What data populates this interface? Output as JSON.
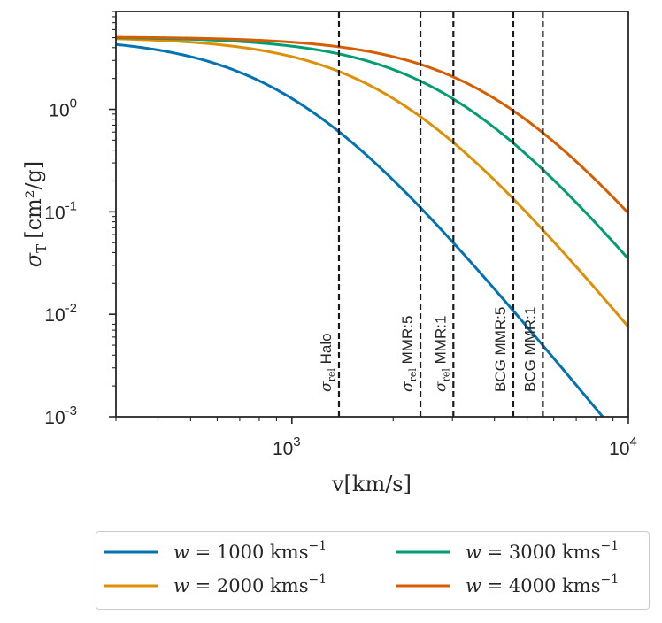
{
  "chart_data": {
    "type": "line",
    "x_scale": "log",
    "y_scale": "log",
    "xlim": [
      300,
      10000
    ],
    "ylim": [
      0.001,
      9
    ],
    "xlabel": "v[km/s]",
    "ylabel": {
      "main": "σ",
      "sub": "T",
      "units": "[cm²/g]"
    },
    "x_ticks": [
      {
        "value": 1000,
        "base": "10",
        "exp": "3"
      },
      {
        "value": 10000,
        "base": "10",
        "exp": "4"
      }
    ],
    "y_ticks": [
      {
        "value": 0.001,
        "base": "10",
        "exp": "-3"
      },
      {
        "value": 0.01,
        "base": "10",
        "exp": "-2"
      },
      {
        "value": 0.1,
        "base": "10",
        "exp": "-1"
      },
      {
        "value": 1,
        "base": "10",
        "exp": "0"
      }
    ],
    "curve_model": {
      "sigma0": 5.1,
      "form": "sigma0 / (1 + (v/w)^2)^2"
    },
    "series": [
      {
        "name": "w = 1000 kms⁻¹",
        "w": 1000,
        "color": "#0173b2",
        "legend": {
          "var": "w",
          "eq": " = 1000 kms",
          "exp": "−1"
        }
      },
      {
        "name": "w = 2000 kms⁻¹",
        "w": 2000,
        "color": "#de8f05",
        "legend": {
          "var": "w",
          "eq": " = 2000 kms",
          "exp": "−1"
        }
      },
      {
        "name": "w = 3000 kms⁻¹",
        "w": 3000,
        "color": "#029e73",
        "legend": {
          "var": "w",
          "eq": " = 3000 kms",
          "exp": "−1"
        }
      },
      {
        "name": "w = 4000 kms⁻¹",
        "w": 4000,
        "color": "#d55e00",
        "legend": {
          "var": "w",
          "eq": " = 4000 kms",
          "exp": "−1"
        }
      }
    ],
    "vlines": [
      {
        "x": 1380,
        "prefix_italic": "σ",
        "prefix_sub": "rel",
        "text": " Halo"
      },
      {
        "x": 2410,
        "prefix_italic": "σ",
        "prefix_sub": "rel",
        "text": " MMR:5"
      },
      {
        "x": 3020,
        "prefix_italic": "σ",
        "prefix_sub": "rel",
        "text": " MMR:1"
      },
      {
        "x": 4550,
        "prefix_italic": "",
        "prefix_sub": "",
        "text": "BCG MMR:5"
      },
      {
        "x": 5570,
        "prefix_italic": "",
        "prefix_sub": "",
        "text": "BCG MMR:1"
      }
    ],
    "legend_location": "below plot, two columns",
    "grid": false
  }
}
